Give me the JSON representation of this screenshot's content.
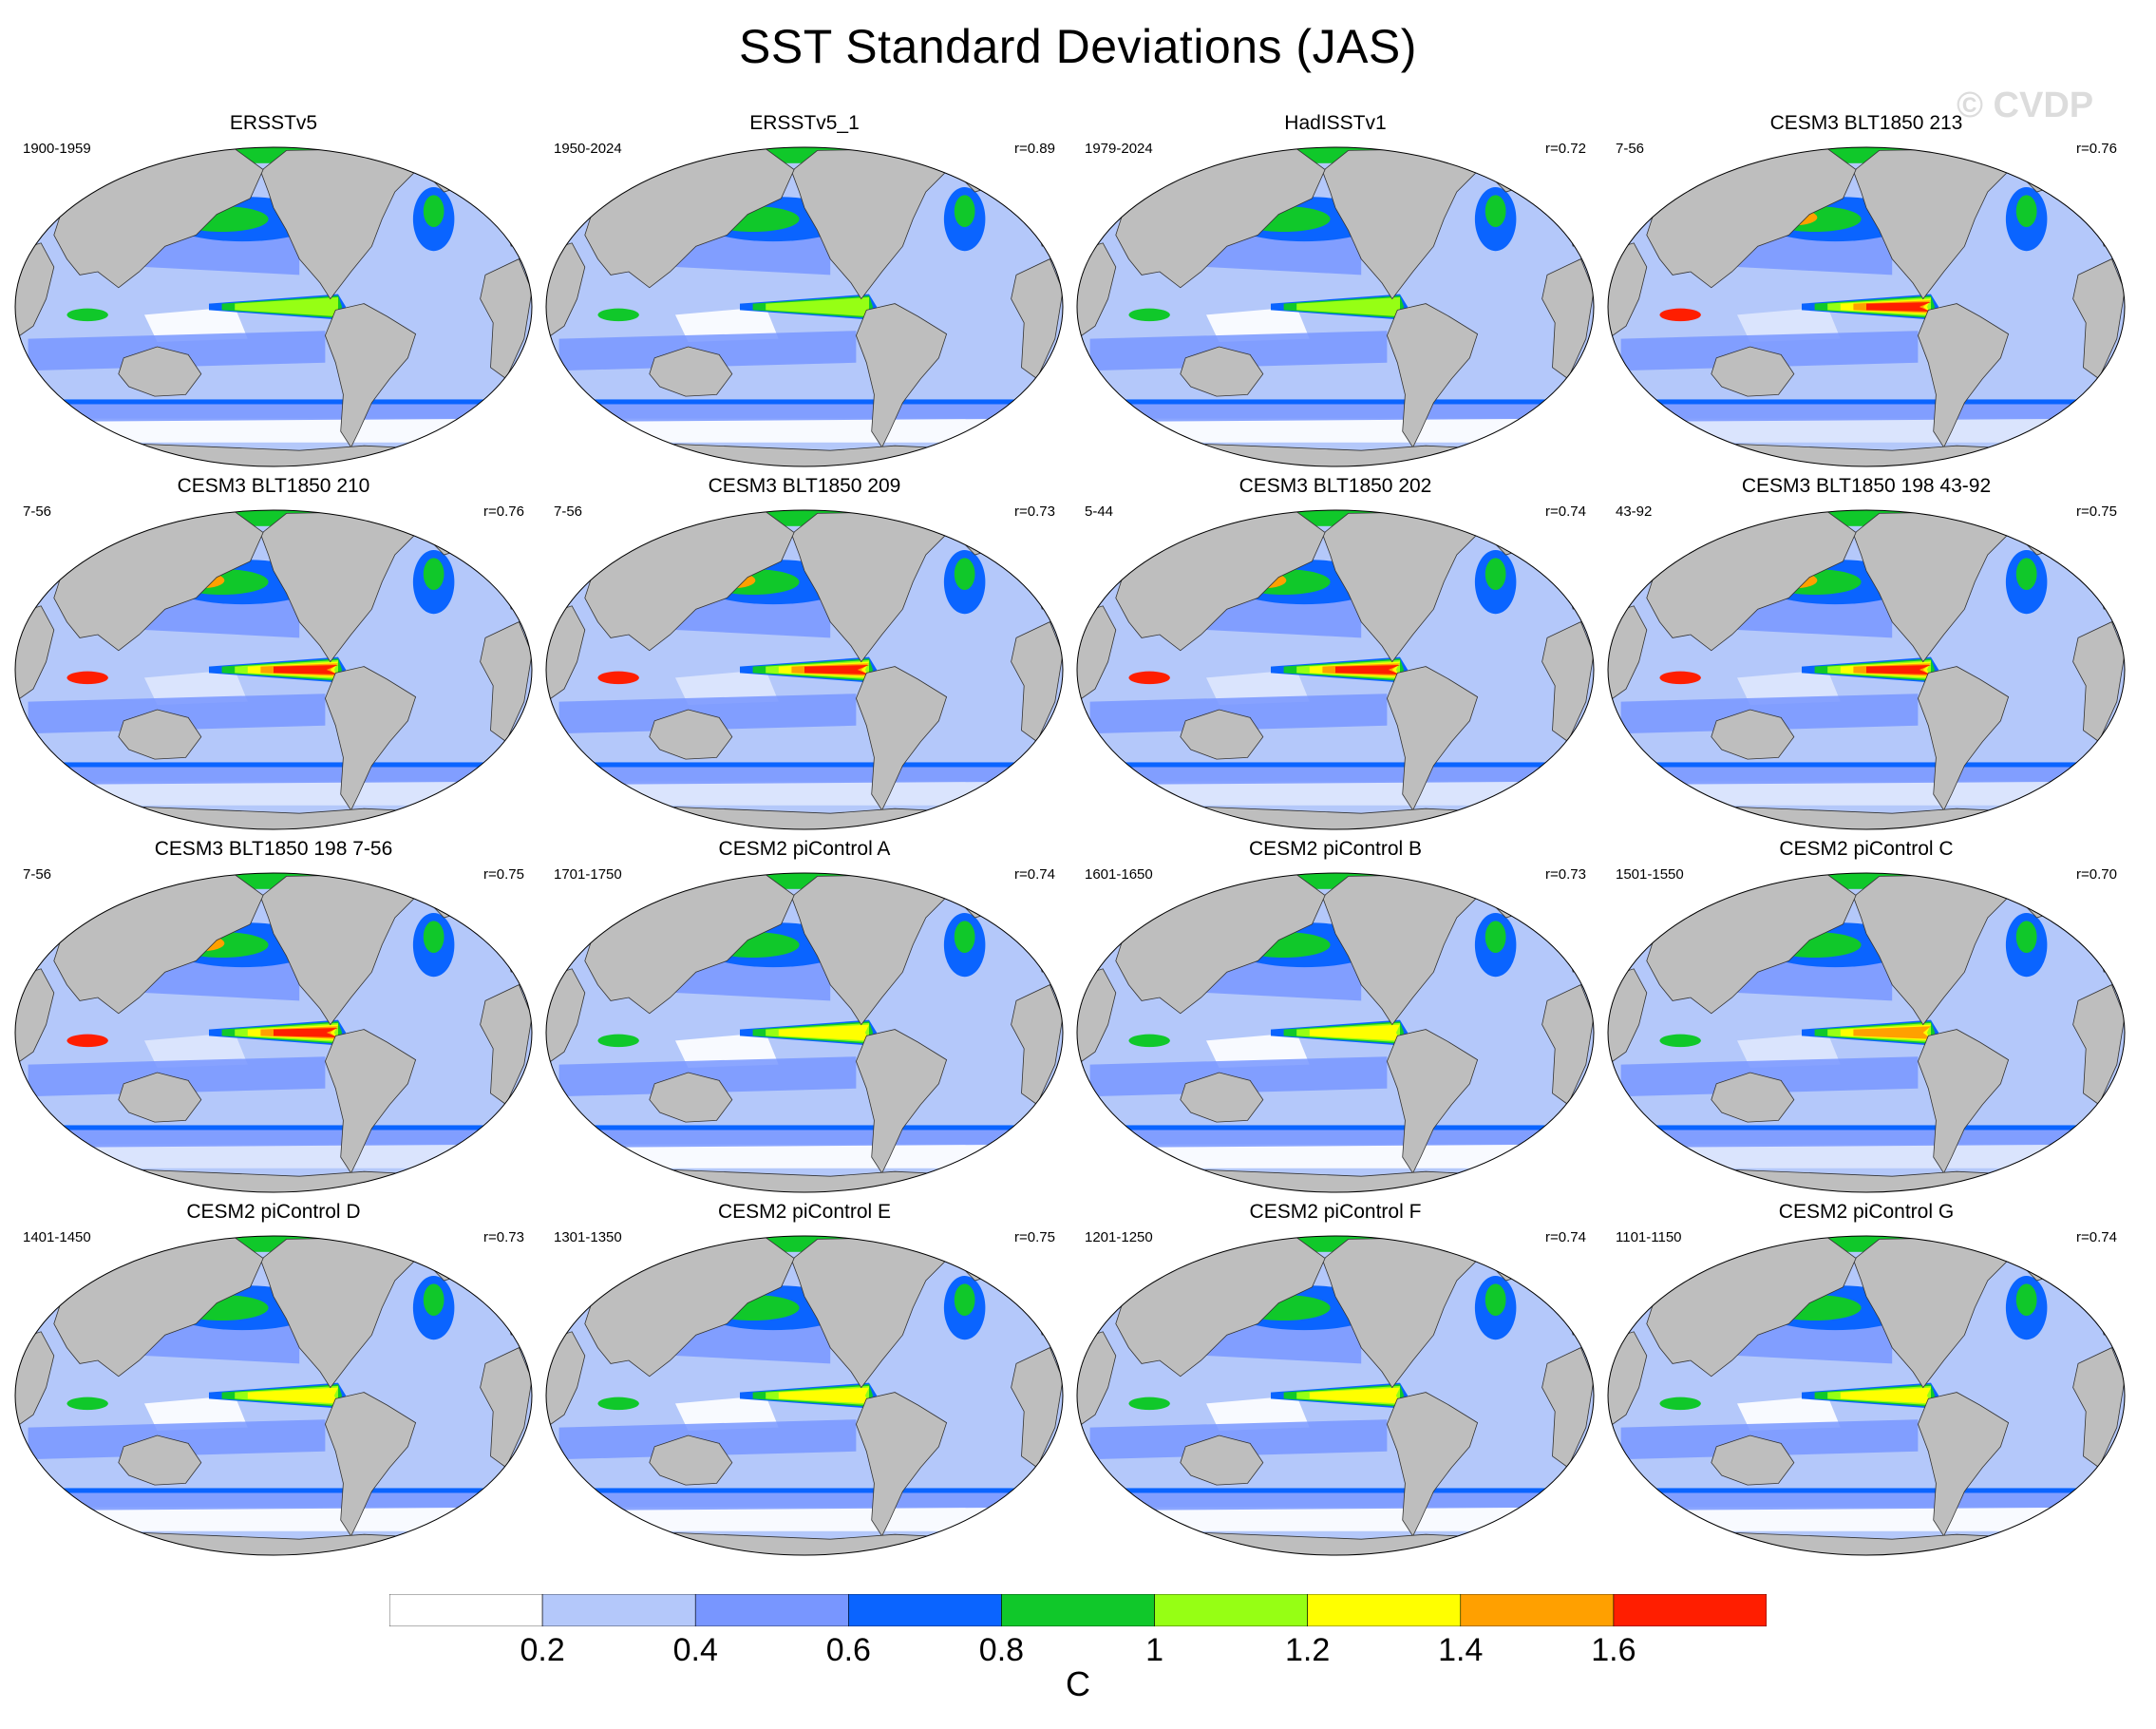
{
  "title": "SST Standard Deviations (JAS)",
  "watermark": "© CVDP",
  "panels": [
    {
      "title": "ERSSTv5",
      "period": "1900-1959",
      "r": "",
      "intensity": 0.45
    },
    {
      "title": "ERSSTv5_1",
      "period": "1950-2024",
      "r": "r=0.89",
      "intensity": 0.45
    },
    {
      "title": "HadISSTv1",
      "period": "1979-2024",
      "r": "r=0.72",
      "intensity": 0.4
    },
    {
      "title": "CESM3 BLT1850 213",
      "period": "7-56",
      "r": "r=0.76",
      "intensity": 0.85
    },
    {
      "title": "CESM3 BLT1850 210",
      "period": "7-56",
      "r": "r=0.76",
      "intensity": 1.0
    },
    {
      "title": "CESM3 BLT1850 209",
      "period": "7-56",
      "r": "r=0.73",
      "intensity": 1.0
    },
    {
      "title": "CESM3 BLT1850 202",
      "period": "5-44",
      "r": "r=0.74",
      "intensity": 1.0
    },
    {
      "title": "CESM3 BLT1850 198 43-92",
      "period": "43-92",
      "r": "r=0.75",
      "intensity": 0.9
    },
    {
      "title": "CESM3 BLT1850 198 7-56",
      "period": "7-56",
      "r": "r=0.75",
      "intensity": 0.9
    },
    {
      "title": "CESM2 piControl A",
      "period": "1701-1750",
      "r": "r=0.74",
      "intensity": 0.6
    },
    {
      "title": "CESM2 piControl B",
      "period": "1601-1650",
      "r": "r=0.73",
      "intensity": 0.6
    },
    {
      "title": "CESM2 piControl C",
      "period": "1501-1550",
      "r": "r=0.70",
      "intensity": 0.7
    },
    {
      "title": "CESM2 piControl D",
      "period": "1401-1450",
      "r": "r=0.73",
      "intensity": 0.55
    },
    {
      "title": "CESM2 piControl E",
      "period": "1301-1350",
      "r": "r=0.75",
      "intensity": 0.55
    },
    {
      "title": "CESM2 piControl F",
      "period": "1201-1250",
      "r": "r=0.74",
      "intensity": 0.55
    },
    {
      "title": "CESM2 piControl G",
      "period": "1101-1150",
      "r": "r=0.74",
      "intensity": 0.6
    }
  ],
  "colorbar": {
    "unit": "C",
    "colors": [
      "#ffffff",
      "#b4c8fa",
      "#7896ff",
      "#0a64ff",
      "#10c82a",
      "#96ff14",
      "#ffff00",
      "#ffa000",
      "#ff1e00"
    ],
    "labels": [
      "0.2",
      "0.4",
      "0.6",
      "0.8",
      "1",
      "1.2",
      "1.4",
      "1.6"
    ]
  },
  "land_color": "#bebebe"
}
